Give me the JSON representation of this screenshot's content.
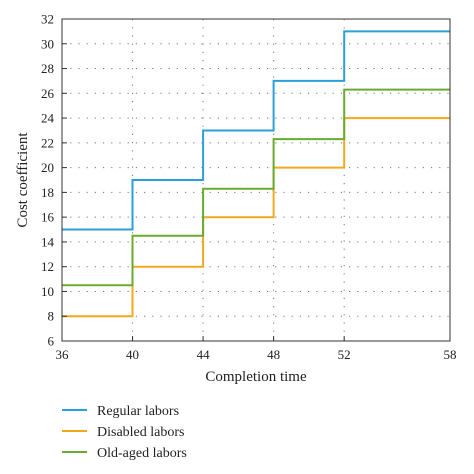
{
  "chart_data": {
    "type": "line",
    "step": true,
    "xlabel": "Completion time",
    "ylabel": "Cost coefficient",
    "xlim": [
      36,
      58
    ],
    "ylim": [
      6,
      32
    ],
    "x_ticks": [
      36,
      40,
      44,
      48,
      52,
      58
    ],
    "y_ticks": [
      6,
      8,
      10,
      12,
      14,
      16,
      18,
      20,
      22,
      24,
      26,
      28,
      30,
      32
    ],
    "grid": "dotted",
    "legend_position": "bottom-left, below plot",
    "series": [
      {
        "name": "Regular labors",
        "color": "#2b9fd9",
        "x": [
          36,
          40,
          40,
          44,
          44,
          48,
          48,
          52,
          52,
          58
        ],
        "y": [
          15,
          15,
          19,
          19,
          23,
          23,
          27,
          27,
          31,
          31
        ]
      },
      {
        "name": "Disabled labors",
        "color": "#f2a81d",
        "x": [
          36,
          40,
          40,
          44,
          44,
          48,
          48,
          52,
          52,
          58
        ],
        "y": [
          8,
          8,
          12,
          12,
          16,
          16,
          20,
          20,
          24,
          24
        ]
      },
      {
        "name": "Old-aged labors",
        "color": "#6aab2e",
        "x": [
          36,
          40,
          40,
          44,
          44,
          48,
          48,
          52,
          52,
          58
        ],
        "y": [
          10.5,
          10.5,
          14.5,
          14.5,
          18.3,
          18.3,
          22.3,
          22.3,
          26.3,
          26.3
        ]
      }
    ]
  }
}
